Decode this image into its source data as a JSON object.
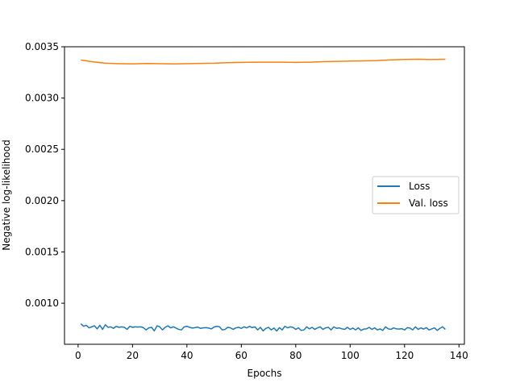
{
  "chart_data": {
    "type": "line",
    "title": "",
    "xlabel": "Epochs",
    "ylabel": "Negative log-likelihood",
    "xlim": [
      -5,
      142
    ],
    "ylim": [
      0.0006,
      0.0035
    ],
    "x_ticks": [
      0,
      20,
      40,
      60,
      80,
      100,
      120,
      140
    ],
    "x_tick_labels": [
      "0",
      "20",
      "40",
      "60",
      "80",
      "100",
      "120",
      "140"
    ],
    "y_ticks": [
      0.001,
      0.0015,
      0.002,
      0.0025,
      0.003,
      0.0035
    ],
    "y_tick_labels": [
      "0.0010",
      "0.0015",
      "0.0020",
      "0.0025",
      "0.0030",
      "0.0035"
    ],
    "grid": false,
    "legend_position": "center-right",
    "series": [
      {
        "name": "Loss",
        "color": "#1f77b4",
        "x": [
          1,
          2,
          3,
          4,
          5,
          6,
          7,
          8,
          9,
          10,
          11,
          12,
          13,
          14,
          15,
          16,
          17,
          18,
          19,
          20,
          21,
          22,
          23,
          24,
          25,
          26,
          27,
          28,
          29,
          30,
          31,
          32,
          33,
          34,
          35,
          36,
          37,
          38,
          39,
          40,
          41,
          42,
          43,
          44,
          45,
          46,
          47,
          48,
          49,
          50,
          51,
          52,
          53,
          54,
          55,
          56,
          57,
          58,
          59,
          60,
          61,
          62,
          63,
          64,
          65,
          66,
          67,
          68,
          69,
          70,
          71,
          72,
          73,
          74,
          75,
          76,
          77,
          78,
          79,
          80,
          81,
          82,
          83,
          84,
          85,
          86,
          87,
          88,
          89,
          90,
          91,
          92,
          93,
          94,
          95,
          96,
          97,
          98,
          99,
          100,
          101,
          102,
          103,
          104,
          105,
          106,
          107,
          108,
          109,
          110,
          111,
          112,
          113,
          114,
          115,
          116,
          117,
          118,
          119,
          120,
          121,
          122,
          123,
          124,
          125,
          126,
          127,
          128,
          129,
          130,
          131,
          132,
          133,
          134,
          135
        ],
        "y": [
          0.0008,
          0.000775,
          0.000785,
          0.00076,
          0.00077,
          0.00078,
          0.00075,
          0.000785,
          0.000745,
          0.00079,
          0.000765,
          0.00077,
          0.000755,
          0.000775,
          0.000765,
          0.00077,
          0.000765,
          0.000745,
          0.000775,
          0.000765,
          0.00077,
          0.000768,
          0.00077,
          0.000762,
          0.00074,
          0.00076,
          0.000765,
          0.00073,
          0.00078,
          0.00077,
          0.00074,
          0.000765,
          0.00078,
          0.00076,
          0.00077,
          0.000758,
          0.000745,
          0.00074,
          0.00077,
          0.000775,
          0.000765,
          0.000758,
          0.000762,
          0.000768,
          0.000755,
          0.00076,
          0.000762,
          0.000758,
          0.00075,
          0.000768,
          0.000775,
          0.00077,
          0.00074,
          0.000745,
          0.000765,
          0.00076,
          0.000745,
          0.00076,
          0.000765,
          0.000755,
          0.00077,
          0.00076,
          0.000775,
          0.000762,
          0.00077,
          0.00074,
          0.000765,
          0.00073,
          0.000755,
          0.000765,
          0.00074,
          0.000758,
          0.00073,
          0.000762,
          0.00074,
          0.000775,
          0.00076,
          0.00077,
          0.000765,
          0.000745,
          0.00076,
          0.000735,
          0.00074,
          0.00077,
          0.00075,
          0.000765,
          0.000745,
          0.00076,
          0.00077,
          0.000745,
          0.00076,
          0.000765,
          0.00074,
          0.00077,
          0.000755,
          0.00076,
          0.00075,
          0.000745,
          0.000765,
          0.000745,
          0.000758,
          0.00074,
          0.00076,
          0.000735,
          0.000748,
          0.00075,
          0.000765,
          0.000745,
          0.00076,
          0.00074,
          0.00075,
          0.000735,
          0.00077,
          0.00075,
          0.000745,
          0.00076,
          0.00075,
          0.000748,
          0.000752,
          0.00074,
          0.000762,
          0.000758,
          0.00074,
          0.00077,
          0.000745,
          0.00076,
          0.000748,
          0.000762,
          0.00074,
          0.00075,
          0.00076,
          0.000735,
          0.000755,
          0.00077,
          0.000745
        ]
      },
      {
        "name": "Val. loss",
        "color": "#ff7f0e",
        "x": [
          1,
          5,
          10,
          15,
          20,
          25,
          30,
          35,
          40,
          45,
          50,
          55,
          60,
          65,
          70,
          75,
          80,
          85,
          90,
          95,
          100,
          105,
          110,
          115,
          120,
          125,
          130,
          135
        ],
        "y": [
          0.00337,
          0.003355,
          0.00334,
          0.003335,
          0.003333,
          0.003337,
          0.003335,
          0.003333,
          0.003335,
          0.003338,
          0.00334,
          0.003345,
          0.003348,
          0.00335,
          0.00335,
          0.00335,
          0.003348,
          0.00335,
          0.003355,
          0.003358,
          0.00336,
          0.003362,
          0.003365,
          0.003372,
          0.003376,
          0.003378,
          0.003375,
          0.003378
        ]
      }
    ]
  }
}
